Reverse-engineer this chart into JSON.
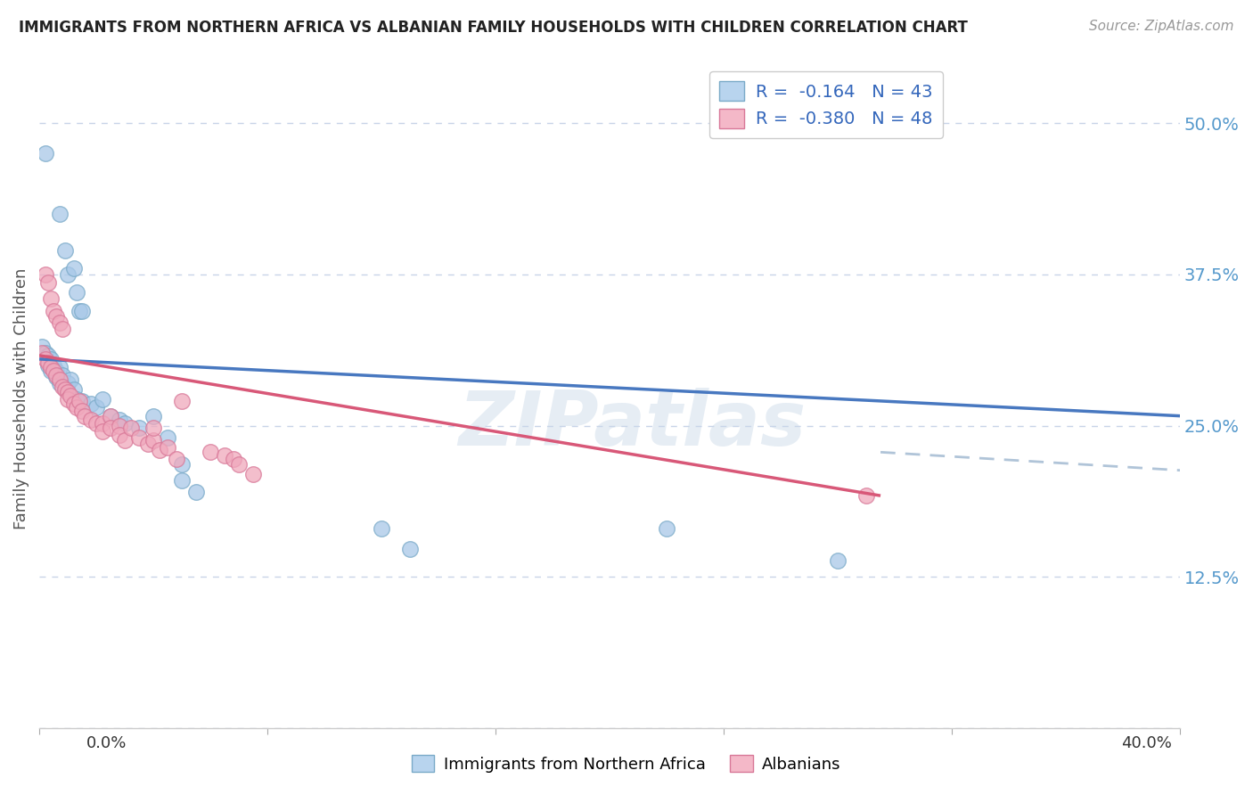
{
  "title": "IMMIGRANTS FROM NORTHERN AFRICA VS ALBANIAN FAMILY HOUSEHOLDS WITH CHILDREN CORRELATION CHART",
  "source": "Source: ZipAtlas.com",
  "ylabel": "Family Households with Children",
  "ytick_values": [
    0.0,
    0.125,
    0.25,
    0.375,
    0.5
  ],
  "ytick_labels": [
    "",
    "12.5%",
    "25.0%",
    "37.5%",
    "50.0%"
  ],
  "xlim": [
    0.0,
    0.4
  ],
  "ylim": [
    0.0,
    0.545
  ],
  "watermark": "ZIPatlas",
  "blue_scatter": [
    [
      0.002,
      0.475
    ],
    [
      0.007,
      0.425
    ],
    [
      0.009,
      0.395
    ],
    [
      0.01,
      0.375
    ],
    [
      0.012,
      0.38
    ],
    [
      0.013,
      0.36
    ],
    [
      0.014,
      0.345
    ],
    [
      0.015,
      0.345
    ],
    [
      0.001,
      0.315
    ],
    [
      0.002,
      0.31
    ],
    [
      0.003,
      0.308
    ],
    [
      0.003,
      0.3
    ],
    [
      0.004,
      0.305
    ],
    [
      0.004,
      0.295
    ],
    [
      0.005,
      0.3
    ],
    [
      0.006,
      0.295
    ],
    [
      0.006,
      0.29
    ],
    [
      0.007,
      0.298
    ],
    [
      0.007,
      0.285
    ],
    [
      0.008,
      0.292
    ],
    [
      0.009,
      0.282
    ],
    [
      0.01,
      0.285
    ],
    [
      0.01,
      0.278
    ],
    [
      0.011,
      0.288
    ],
    [
      0.012,
      0.28
    ],
    [
      0.013,
      0.272
    ],
    [
      0.015,
      0.27
    ],
    [
      0.018,
      0.268
    ],
    [
      0.02,
      0.265
    ],
    [
      0.022,
      0.272
    ],
    [
      0.025,
      0.258
    ],
    [
      0.028,
      0.255
    ],
    [
      0.03,
      0.252
    ],
    [
      0.035,
      0.248
    ],
    [
      0.04,
      0.258
    ],
    [
      0.045,
      0.24
    ],
    [
      0.05,
      0.218
    ],
    [
      0.05,
      0.205
    ],
    [
      0.055,
      0.195
    ],
    [
      0.12,
      0.165
    ],
    [
      0.13,
      0.148
    ],
    [
      0.22,
      0.165
    ],
    [
      0.28,
      0.138
    ]
  ],
  "pink_scatter": [
    [
      0.002,
      0.375
    ],
    [
      0.003,
      0.368
    ],
    [
      0.004,
      0.355
    ],
    [
      0.005,
      0.345
    ],
    [
      0.006,
      0.34
    ],
    [
      0.007,
      0.335
    ],
    [
      0.008,
      0.33
    ],
    [
      0.001,
      0.31
    ],
    [
      0.002,
      0.305
    ],
    [
      0.003,
      0.302
    ],
    [
      0.004,
      0.298
    ],
    [
      0.005,
      0.295
    ],
    [
      0.006,
      0.292
    ],
    [
      0.007,
      0.288
    ],
    [
      0.008,
      0.282
    ],
    [
      0.009,
      0.28
    ],
    [
      0.01,
      0.278
    ],
    [
      0.01,
      0.272
    ],
    [
      0.011,
      0.275
    ],
    [
      0.012,
      0.268
    ],
    [
      0.013,
      0.265
    ],
    [
      0.014,
      0.27
    ],
    [
      0.015,
      0.262
    ],
    [
      0.016,
      0.258
    ],
    [
      0.018,
      0.255
    ],
    [
      0.02,
      0.252
    ],
    [
      0.022,
      0.252
    ],
    [
      0.022,
      0.245
    ],
    [
      0.025,
      0.258
    ],
    [
      0.025,
      0.248
    ],
    [
      0.028,
      0.25
    ],
    [
      0.028,
      0.242
    ],
    [
      0.03,
      0.238
    ],
    [
      0.032,
      0.248
    ],
    [
      0.035,
      0.24
    ],
    [
      0.038,
      0.235
    ],
    [
      0.04,
      0.238
    ],
    [
      0.04,
      0.248
    ],
    [
      0.042,
      0.23
    ],
    [
      0.045,
      0.232
    ],
    [
      0.048,
      0.222
    ],
    [
      0.05,
      0.27
    ],
    [
      0.06,
      0.228
    ],
    [
      0.065,
      0.225
    ],
    [
      0.068,
      0.222
    ],
    [
      0.07,
      0.218
    ],
    [
      0.075,
      0.21
    ],
    [
      0.29,
      0.192
    ]
  ],
  "blue_line_x": [
    0.0,
    0.4
  ],
  "blue_line_y": [
    0.305,
    0.258
  ],
  "pink_line_x": [
    0.0,
    0.295
  ],
  "pink_line_y": [
    0.308,
    0.192
  ],
  "dashed_line_x": [
    0.295,
    0.4
  ],
  "dashed_line_y": [
    0.228,
    0.213
  ],
  "background_color": "#ffffff",
  "grid_color": "#c8d4e8",
  "scatter_blue_face": "#a8c8e8",
  "scatter_blue_edge": "#7aaac8",
  "scatter_pink_face": "#f0a8bc",
  "scatter_pink_edge": "#d87898",
  "line_blue": "#4878c0",
  "line_pink": "#d85878",
  "line_dashed": "#b0c4d8",
  "legend1_label": "R =  -0.164   N = 43",
  "legend2_label": "R =  -0.380   N = 48",
  "legend_patch_blue": "#b8d4ee",
  "legend_patch_pink": "#f4b8c8",
  "bottom_legend1": "Immigrants from Northern Africa",
  "bottom_legend2": "Albanians"
}
